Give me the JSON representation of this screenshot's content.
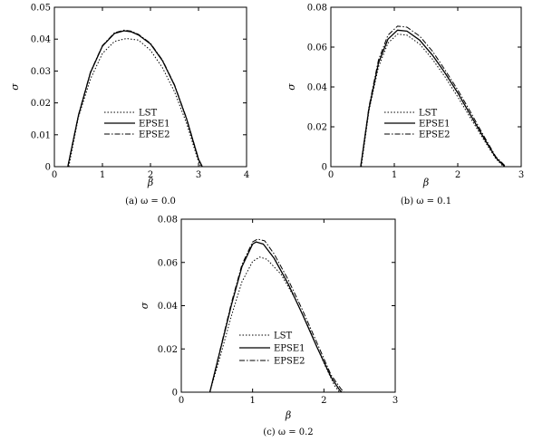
{
  "chart_data": [
    {
      "type": "line",
      "caption": "(a) ω = 0.0",
      "xlabel": "β",
      "ylabel": "σ",
      "xlim": [
        0,
        4
      ],
      "ylim": [
        0,
        0.05
      ],
      "xticks": [
        0,
        1,
        2,
        3,
        4
      ],
      "yticks": [
        0,
        0.01,
        0.02,
        0.03,
        0.04,
        0.05
      ],
      "xtick_labels": [
        "0",
        "1",
        "2",
        "3",
        "4"
      ],
      "ytick_labels": [
        "0",
        "0.01",
        "0.02",
        "0.03",
        "0.04",
        "0.05"
      ],
      "legend_position": "center-left",
      "series": [
        {
          "name": "LST",
          "style": "dotted",
          "x": [
            0.3,
            0.5,
            0.75,
            1.0,
            1.25,
            1.5,
            1.75,
            2.0,
            2.25,
            2.5,
            2.75,
            3.0,
            3.05
          ],
          "y": [
            0.0,
            0.0155,
            0.0275,
            0.0355,
            0.0393,
            0.0402,
            0.0397,
            0.0365,
            0.031,
            0.0235,
            0.0136,
            0.0015,
            0.0
          ]
        },
        {
          "name": "EPSE1",
          "style": "solid",
          "x": [
            0.28,
            0.5,
            0.75,
            1.0,
            1.25,
            1.45,
            1.6,
            1.75,
            2.0,
            2.25,
            2.5,
            2.75,
            3.0,
            3.08
          ],
          "y": [
            0.0,
            0.016,
            0.0295,
            0.0378,
            0.0418,
            0.0426,
            0.0423,
            0.0413,
            0.0385,
            0.0332,
            0.0255,
            0.015,
            0.0023,
            0.0
          ]
        },
        {
          "name": "EPSE2",
          "style": "dashdot",
          "x": [
            0.28,
            0.5,
            0.75,
            1.0,
            1.25,
            1.45,
            1.6,
            1.75,
            2.0,
            2.25,
            2.5,
            2.75,
            3.0,
            3.08
          ],
          "y": [
            0.0,
            0.0162,
            0.0297,
            0.038,
            0.042,
            0.0428,
            0.0425,
            0.0415,
            0.0387,
            0.0334,
            0.0257,
            0.0152,
            0.0025,
            0.0
          ]
        }
      ]
    },
    {
      "type": "line",
      "caption": "(b) ω = 0.1",
      "xlabel": "β",
      "ylabel": "σ",
      "xlim": [
        0,
        3
      ],
      "ylim": [
        0,
        0.08
      ],
      "xticks": [
        0,
        1,
        2,
        3
      ],
      "yticks": [
        0,
        0.02,
        0.04,
        0.06,
        0.08
      ],
      "xtick_labels": [
        "0",
        "1",
        "2",
        "3"
      ],
      "ytick_labels": [
        "0",
        "0.02",
        "0.04",
        "0.06",
        "0.08"
      ],
      "legend_position": "center-left",
      "series": [
        {
          "name": "LST",
          "style": "dotted",
          "x": [
            0.48,
            0.6,
            0.75,
            0.9,
            1.05,
            1.2,
            1.4,
            1.6,
            1.8,
            2.0,
            2.2,
            2.4,
            2.6,
            2.72
          ],
          "y": [
            0.0,
            0.028,
            0.05,
            0.062,
            0.0665,
            0.066,
            0.0615,
            0.054,
            0.045,
            0.035,
            0.0245,
            0.014,
            0.004,
            0.0
          ]
        },
        {
          "name": "EPSE1",
          "style": "solid",
          "x": [
            0.47,
            0.6,
            0.75,
            0.9,
            1.05,
            1.2,
            1.4,
            1.6,
            1.8,
            2.0,
            2.2,
            2.4,
            2.6,
            2.74
          ],
          "y": [
            0.0,
            0.029,
            0.052,
            0.064,
            0.0685,
            0.068,
            0.0635,
            0.056,
            0.047,
            0.037,
            0.026,
            0.015,
            0.0045,
            0.0
          ]
        },
        {
          "name": "EPSE2",
          "style": "dashdot",
          "x": [
            0.47,
            0.6,
            0.75,
            0.9,
            1.05,
            1.2,
            1.4,
            1.6,
            1.8,
            2.0,
            2.2,
            2.4,
            2.6,
            2.76
          ],
          "y": [
            0.0,
            0.03,
            0.0535,
            0.066,
            0.0705,
            0.07,
            0.0655,
            0.058,
            0.0485,
            0.0385,
            0.0275,
            0.016,
            0.005,
            0.0
          ]
        }
      ]
    },
    {
      "type": "line",
      "caption": "(c) ω = 0.2",
      "xlabel": "β",
      "ylabel": "σ",
      "xlim": [
        0,
        3
      ],
      "ylim": [
        0,
        0.08
      ],
      "xticks": [
        0,
        1,
        2,
        3
      ],
      "yticks": [
        0,
        0.02,
        0.04,
        0.06,
        0.08
      ],
      "xtick_labels": [
        "0",
        "1",
        "2",
        "3"
      ],
      "ytick_labels": [
        "0",
        "0.02",
        "0.04",
        "0.06",
        "0.08"
      ],
      "legend_position": "center-left",
      "series": [
        {
          "name": "LST",
          "style": "dotted",
          "x": [
            0.4,
            0.55,
            0.7,
            0.85,
            1.0,
            1.1,
            1.2,
            1.4,
            1.6,
            1.8,
            2.0,
            2.15,
            2.22
          ],
          "y": [
            0.0,
            0.017,
            0.035,
            0.051,
            0.0605,
            0.0625,
            0.0615,
            0.0545,
            0.043,
            0.029,
            0.0135,
            0.003,
            0.0
          ]
        },
        {
          "name": "EPSE1",
          "style": "solid",
          "x": [
            0.4,
            0.55,
            0.7,
            0.85,
            1.0,
            1.05,
            1.15,
            1.3,
            1.5,
            1.7,
            1.9,
            2.1,
            2.22,
            2.25
          ],
          "y": [
            0.0,
            0.02,
            0.04,
            0.058,
            0.0685,
            0.0695,
            0.0685,
            0.062,
            0.05,
            0.036,
            0.021,
            0.007,
            0.001,
            0.0
          ]
        },
        {
          "name": "EPSE2",
          "style": "dashdot",
          "x": [
            0.4,
            0.55,
            0.7,
            0.85,
            1.0,
            1.07,
            1.17,
            1.3,
            1.5,
            1.7,
            1.9,
            2.1,
            2.24,
            2.28
          ],
          "y": [
            0.0,
            0.0205,
            0.041,
            0.059,
            0.0695,
            0.0708,
            0.07,
            0.064,
            0.052,
            0.038,
            0.023,
            0.008,
            0.0015,
            0.0
          ]
        }
      ]
    }
  ]
}
